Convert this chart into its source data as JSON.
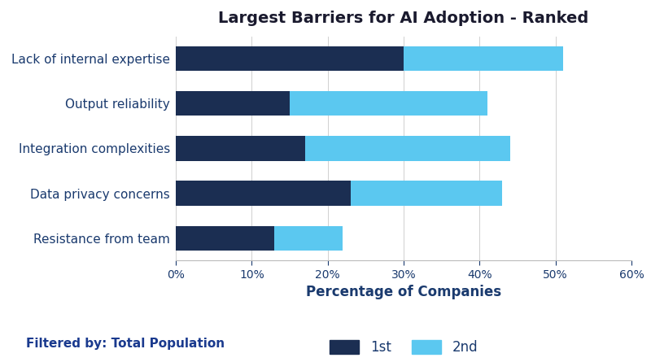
{
  "title": "Largest Barriers for AI Adoption - Ranked",
  "categories": [
    "Lack of internal expertise",
    "Output reliability",
    "Integration complexities",
    "Data privacy concerns",
    "Resistance from team"
  ],
  "first_values": [
    30,
    15,
    17,
    23,
    13
  ],
  "second_values": [
    21,
    26,
    27,
    20,
    9
  ],
  "color_first": "#1b2e52",
  "color_second": "#5bc8f0",
  "xlabel": "Percentage of Companies",
  "xlim": [
    0,
    60
  ],
  "xticks": [
    0,
    10,
    20,
    30,
    40,
    50,
    60
  ],
  "xtick_labels": [
    "0%",
    "10%",
    "20%",
    "30%",
    "40%",
    "50%",
    "60%"
  ],
  "legend_labels": [
    "1st",
    "2nd"
  ],
  "footer_text": "Filtered by: Total Population",
  "title_color": "#1a1a2e",
  "label_color": "#1a3a6e",
  "xlabel_color": "#1a3a6e",
  "footer_color": "#1a3a8e",
  "background_color": "#ffffff",
  "bar_height": 0.55
}
